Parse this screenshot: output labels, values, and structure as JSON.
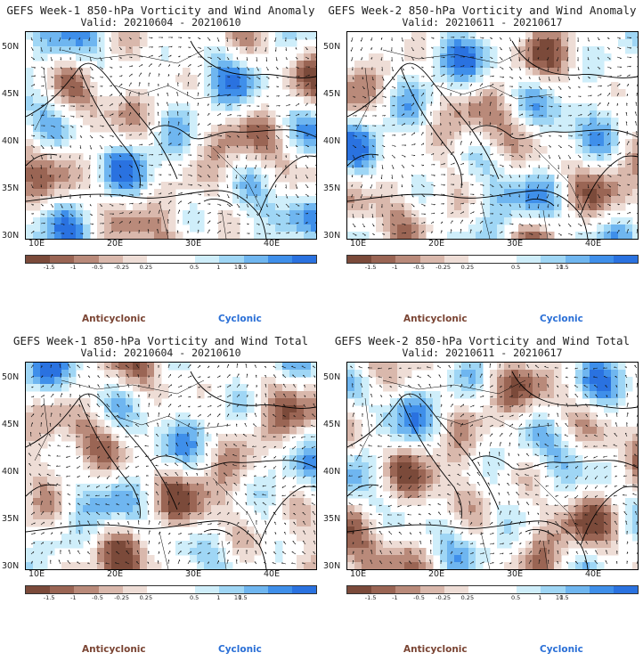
{
  "panels": [
    {
      "title": "GEFS Week-1 850-hPa Vorticity and Wind Anomaly",
      "valid": "Valid: 20210604 - 20210610"
    },
    {
      "title": "GEFS Week-2 850-hPa Vorticity and Wind Anomaly",
      "valid": "Valid: 20210611 - 20210617"
    },
    {
      "title": "GEFS Week-1 850-hPa Vorticity and Wind Total",
      "valid": "Valid: 20210604 - 20210610"
    },
    {
      "title": "GEFS Week-2 850-hPa Vorticity and Wind Total",
      "valid": "Valid: 20210611 - 20210617"
    }
  ],
  "lat_labels": [
    "50N",
    "45N",
    "40N",
    "35N",
    "30N"
  ],
  "lon_labels": [
    "10E",
    "20E",
    "30E",
    "40E"
  ],
  "colorbar": {
    "ticks": [
      "-1.5",
      "-1",
      "-0.5",
      "-0.25",
      "0.25",
      "0.5",
      "1",
      "1.5"
    ],
    "unit": "10",
    "colors": [
      "#7b4a3a",
      "#9a6554",
      "#b98a7a",
      "#d9b8ac",
      "#eeddd6",
      "#ffffff",
      "#ffffff",
      "#cfeefa",
      "#9fd6f5",
      "#6fb6f0",
      "#3f8fea",
      "#2a72e0"
    ]
  },
  "legend": {
    "anticyclonic": "Anticyclonic",
    "cyclonic": "Cyclonic"
  }
}
